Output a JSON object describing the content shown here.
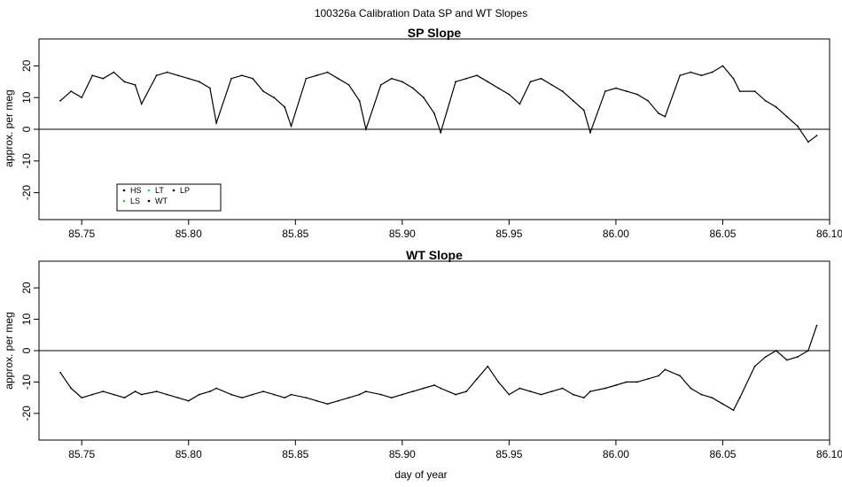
{
  "figure": {
    "title": "100326a   Calibration Data SP and WT Slopes",
    "xlabel": "day of year"
  },
  "chart_data": [
    {
      "type": "line",
      "title": "SP Slope",
      "xlabel": "",
      "ylabel": "approx. per meg",
      "xlim": [
        85.73,
        86.1
      ],
      "ylim": [
        -28.5,
        28.5
      ],
      "xticks": [
        85.75,
        85.8,
        85.85,
        85.9,
        85.95,
        86.0,
        86.05,
        86.1
      ],
      "xtick_labels": [
        "85.75",
        "85.80",
        "85.85",
        "85.90",
        "85.95",
        "86.00",
        "86.05",
        "86.10"
      ],
      "yticks": [
        -20,
        -10,
        0,
        10,
        20
      ],
      "ytick_labels": [
        "-20",
        "-10",
        "0",
        "10",
        "20"
      ],
      "hline": 0,
      "legend": {
        "position": "bottom-left",
        "entries": [
          {
            "label": "HS",
            "color": "#000000"
          },
          {
            "label": "LS",
            "color": "#22cc22"
          },
          {
            "label": "LT",
            "color": "#22bbcc"
          },
          {
            "label": "WT",
            "color": "#000000"
          },
          {
            "label": "LP",
            "color": "#000000"
          }
        ]
      },
      "series": [
        {
          "color": "#000000",
          "x": [
            85.74,
            85.745,
            85.75,
            85.755,
            85.76,
            85.765,
            85.77,
            85.775,
            85.778,
            85.785,
            85.79,
            85.795,
            85.8,
            85.805,
            85.81,
            85.813,
            85.82,
            85.825,
            85.83,
            85.835,
            85.84,
            85.845,
            85.848,
            85.855,
            85.86,
            85.865,
            85.87,
            85.875,
            85.88,
            85.883,
            85.89,
            85.895,
            85.9,
            85.905,
            85.91,
            85.915,
            85.918,
            85.925,
            85.93,
            85.935,
            85.94,
            85.945,
            85.95,
            85.955,
            85.96,
            85.965,
            85.97,
            85.975,
            85.98,
            85.985,
            85.988,
            85.995,
            86.0,
            86.005,
            86.01,
            86.015,
            86.02,
            86.023,
            86.03,
            86.035,
            86.04,
            86.045,
            86.05,
            86.055,
            86.058,
            86.065,
            86.07,
            86.075,
            86.08,
            86.085,
            86.09,
            86.094
          ],
          "y": [
            9,
            12,
            10,
            17,
            16,
            18,
            15,
            14,
            8,
            17,
            18,
            17,
            16,
            15,
            13,
            2,
            16,
            17,
            16,
            12,
            10,
            7,
            1,
            16,
            17,
            18,
            16,
            14,
            9,
            0,
            14,
            16,
            15,
            13,
            10,
            5,
            -1,
            15,
            16,
            17,
            15,
            13,
            11,
            8,
            15,
            16,
            14,
            12,
            9,
            6,
            -1,
            12,
            13,
            12,
            11,
            9,
            5,
            4,
            17,
            18,
            17,
            18,
            20,
            16,
            12,
            12,
            9,
            7,
            4,
            1,
            -4,
            -2
          ]
        }
      ]
    },
    {
      "type": "line",
      "title": "WT Slope",
      "xlabel": "day of year",
      "ylabel": "approx. per meg",
      "xlim": [
        85.73,
        86.1
      ],
      "ylim": [
        -28.5,
        28.5
      ],
      "xticks": [
        85.75,
        85.8,
        85.85,
        85.9,
        85.95,
        86.0,
        86.05,
        86.1
      ],
      "xtick_labels": [
        "85.75",
        "85.80",
        "85.85",
        "85.90",
        "85.95",
        "86.00",
        "86.05",
        "86.10"
      ],
      "yticks": [
        -20,
        -10,
        0,
        10,
        20
      ],
      "ytick_labels": [
        "-20",
        "-10",
        "0",
        "10",
        "20"
      ],
      "hline": 0,
      "series": [
        {
          "color": "#000000",
          "x": [
            85.74,
            85.745,
            85.75,
            85.755,
            85.76,
            85.765,
            85.77,
            85.775,
            85.778,
            85.785,
            85.79,
            85.795,
            85.8,
            85.805,
            85.81,
            85.813,
            85.82,
            85.825,
            85.83,
            85.835,
            85.84,
            85.845,
            85.848,
            85.855,
            85.86,
            85.865,
            85.87,
            85.875,
            85.88,
            85.883,
            85.89,
            85.895,
            85.9,
            85.905,
            85.91,
            85.915,
            85.918,
            85.925,
            85.93,
            85.935,
            85.94,
            85.945,
            85.95,
            85.955,
            85.96,
            85.965,
            85.97,
            85.975,
            85.98,
            85.985,
            85.988,
            85.995,
            86.0,
            86.005,
            86.01,
            86.015,
            86.02,
            86.023,
            86.03,
            86.035,
            86.04,
            86.045,
            86.05,
            86.055,
            86.058,
            86.065,
            86.07,
            86.075,
            86.08,
            86.085,
            86.09,
            86.094
          ],
          "y": [
            -7,
            -12,
            -15,
            -14,
            -13,
            -14,
            -15,
            -13,
            -14,
            -13,
            -14,
            -15,
            -16,
            -14,
            -13,
            -12,
            -14,
            -15,
            -14,
            -13,
            -14,
            -15,
            -14,
            -15,
            -16,
            -17,
            -16,
            -15,
            -14,
            -13,
            -14,
            -15,
            -14,
            -13,
            -12,
            -11,
            -12,
            -14,
            -13,
            -9,
            -5,
            -10,
            -14,
            -12,
            -13,
            -14,
            -13,
            -12,
            -14,
            -15,
            -13,
            -12,
            -11,
            -10,
            -10,
            -9,
            -8,
            -6,
            -8,
            -12,
            -14,
            -15,
            -17,
            -19,
            -15,
            -5,
            -2,
            0,
            -3,
            -2,
            0,
            8
          ]
        }
      ]
    }
  ]
}
